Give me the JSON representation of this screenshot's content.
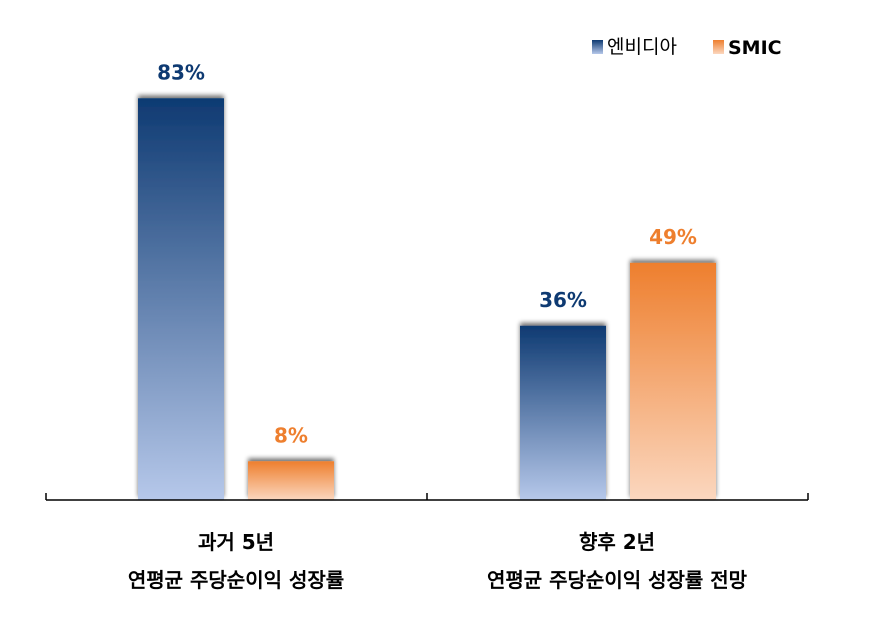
{
  "chart_data": {
    "type": "bar",
    "categories": [
      [
        "과거 5년",
        "연평균 주당순이익 성장률"
      ],
      [
        "향후 2년",
        "연평균 주당순이익 성장률 전망"
      ]
    ],
    "series": [
      {
        "name": "엔비디아",
        "values": [
          83,
          36
        ],
        "labels": [
          "83%",
          "36%"
        ],
        "color": "#0e3a72",
        "label_color": "#0e3a72"
      },
      {
        "name": "SMIC",
        "values": [
          8,
          49
        ],
        "labels": [
          "8%",
          "49%"
        ],
        "color": "#ee7f2e",
        "label_color": "#ee7f2e"
      }
    ],
    "ylim": [
      0,
      100
    ],
    "grid": false,
    "legend": "top-right",
    "title": "",
    "xlabel": "",
    "ylabel": ""
  }
}
